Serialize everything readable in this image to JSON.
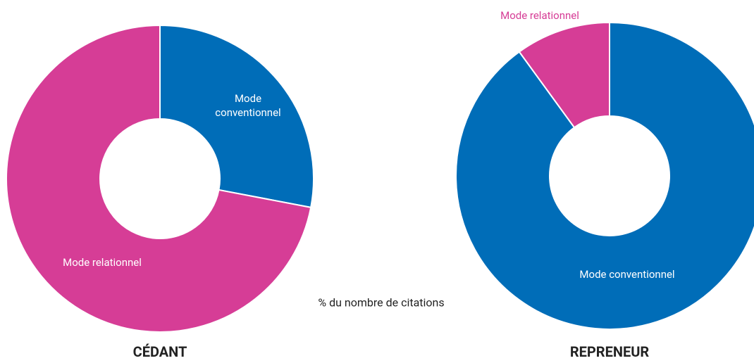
{
  "chart_data": [
    {
      "type": "pie",
      "title": "CÉDANT",
      "categories": [
        "Mode conventionnel",
        "Mode relationnel"
      ],
      "values": [
        28,
        72
      ],
      "colors": [
        "#006db8",
        "#d63d96"
      ]
    },
    {
      "type": "pie",
      "title": "REPRENEUR",
      "categories": [
        "Mode conventionnel",
        "Mode relationnel"
      ],
      "values": [
        90,
        10
      ],
      "colors": [
        "#006db8",
        "#d63d96"
      ]
    }
  ],
  "note": "% du nombre de citations"
}
